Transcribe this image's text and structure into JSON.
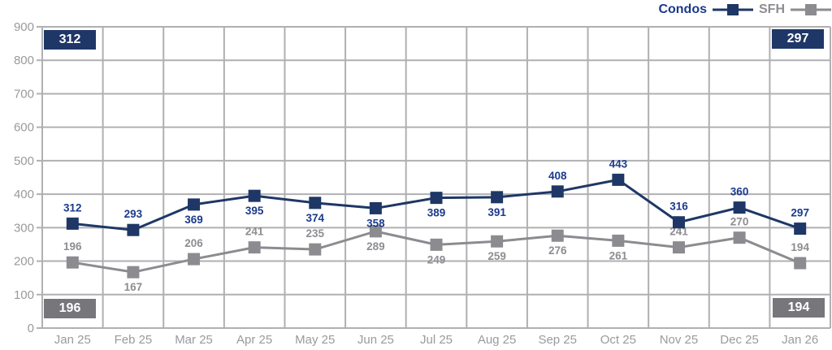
{
  "legend": {
    "condos": "Condos",
    "sfh": "SFH"
  },
  "summary": {
    "condos_first": "312",
    "condos_last": "297",
    "sfh_first": "196",
    "sfh_last": "194"
  },
  "colors": {
    "navy": "#1e3766",
    "navy_text": "#1b3a8c",
    "gray_marker": "#8b8b90",
    "gray_text": "#8d8d92",
    "gray_box": "#76767b",
    "axis_text": "#9a9a9e",
    "grid": "#b0b0b3"
  },
  "chart_data": {
    "type": "line",
    "title": "",
    "xlabel": "",
    "ylabel": "",
    "categories": [
      "Jan 25",
      "Feb 25",
      "Mar 25",
      "Apr 25",
      "May 25",
      "Jun 25",
      "Jul 25",
      "Aug 25",
      "Sep 25",
      "Oct 25",
      "Nov 25",
      "Dec 25",
      "Jan 26"
    ],
    "series": [
      {
        "name": "Condos",
        "color": "#1e3766",
        "label_color": "#1b3a8c",
        "values": [
          312,
          293,
          369,
          395,
          374,
          358,
          389,
          391,
          408,
          443,
          316,
          360,
          297
        ],
        "label_pos": [
          "above",
          "above",
          "below",
          "below",
          "below",
          "below",
          "below",
          "below",
          "above",
          "above",
          "above",
          "above",
          "above"
        ]
      },
      {
        "name": "SFH",
        "color": "#8b8b90",
        "label_color": "#8d8d92",
        "values": [
          196,
          167,
          206,
          241,
          235,
          289,
          249,
          259,
          276,
          261,
          241,
          270,
          194
        ],
        "label_pos": [
          "above",
          "below",
          "above",
          "above",
          "above",
          "below",
          "below",
          "below",
          "below",
          "below",
          "above",
          "above",
          "above"
        ]
      }
    ],
    "ylim": [
      0,
      900
    ],
    "ytick_step": 100,
    "grid": true,
    "legend_position": "top-right",
    "highlight_first_last": true
  }
}
